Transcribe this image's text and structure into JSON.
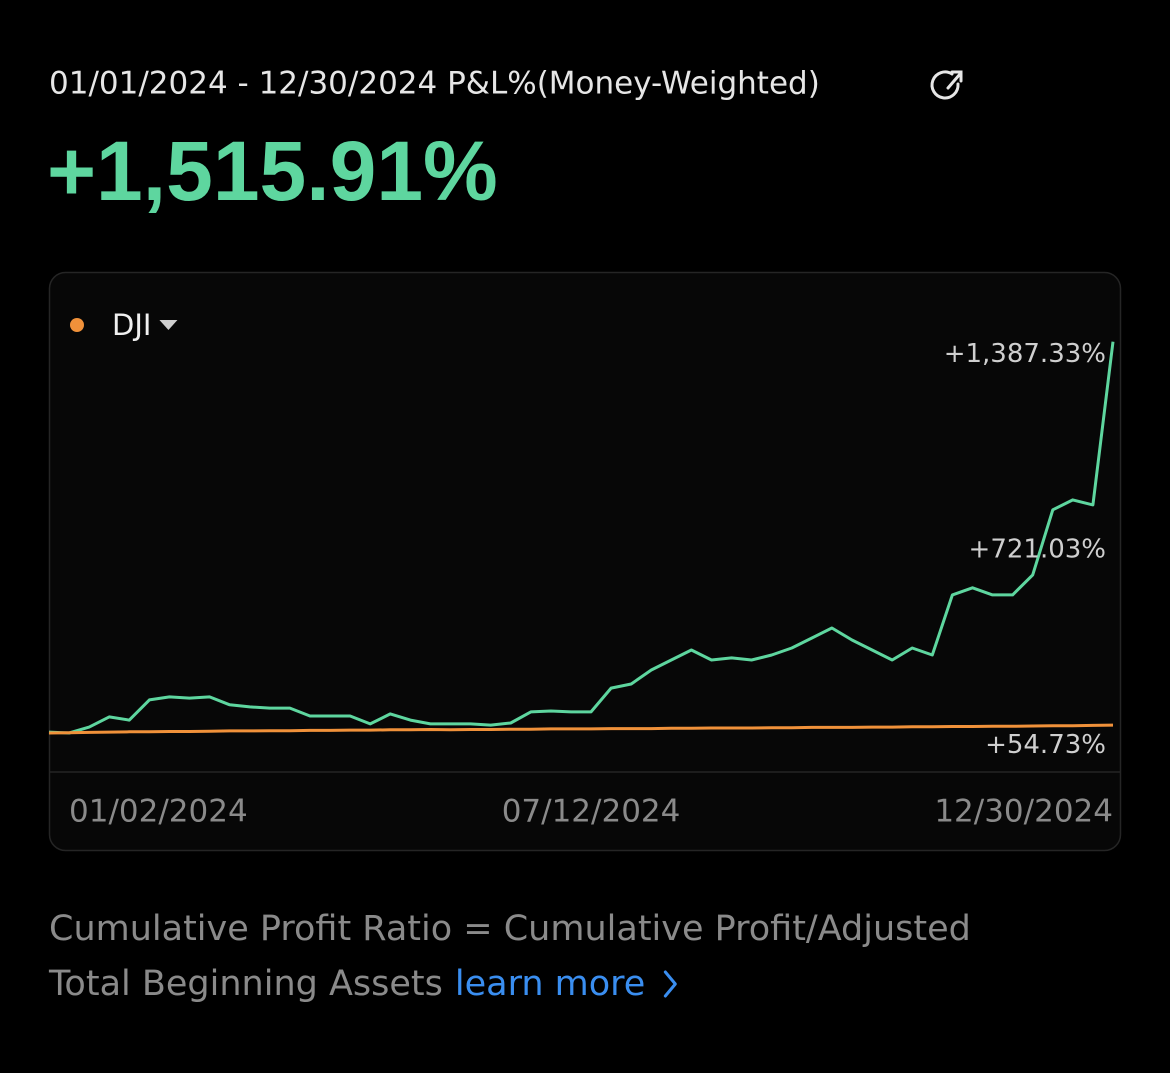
{
  "header": {
    "title": "01/01/2024 - 12/30/2024 P&L%(Money-Weighted)",
    "value": "+1,515.91%"
  },
  "chart_data": {
    "type": "line",
    "xlim": [
      0,
      53
    ],
    "xticks": [
      {
        "value": 0,
        "label": "01/02/2024"
      },
      {
        "value": 27,
        "label": "07/12/2024"
      },
      {
        "value": 53,
        "label": "12/30/2024"
      }
    ],
    "ylim": [
      -80,
      1400
    ],
    "yticks": [
      {
        "value": 1387.33,
        "label": "+1,387.33%"
      },
      {
        "value": 721.03,
        "label": "+721.03%"
      },
      {
        "value": 54.73,
        "label": "+54.73%"
      }
    ],
    "grid": false,
    "series": [
      {
        "color": "#5ed69f",
        "values": [
          56,
          53,
          73,
          108,
          97,
          166,
          176,
          172,
          176,
          149,
          142,
          138,
          138,
          111,
          111,
          111,
          84,
          118,
          97,
          84,
          84,
          84,
          80,
          87,
          125,
          128,
          125,
          125,
          206,
          220,
          268,
          302,
          336,
          302,
          309,
          302,
          319,
          343,
          377,
          411,
          370,
          336,
          302,
          343,
          319,
          524,
          548,
          524,
          524,
          592,
          814,
          848,
          831,
          1387.33
        ]
      },
      {
        "name": "DJI",
        "color": "#f0913a",
        "values": [
          53,
          54,
          55,
          56,
          57,
          57,
          58,
          58,
          59,
          60,
          60,
          61,
          61,
          62,
          62,
          63,
          63,
          64,
          64,
          65,
          64,
          65,
          65,
          66,
          66,
          67,
          67,
          67,
          68,
          68,
          68,
          69,
          69,
          70,
          70,
          70,
          71,
          71,
          72,
          72,
          72,
          73,
          73,
          74,
          74,
          75,
          75,
          76,
          76,
          77,
          78,
          78,
          79,
          80
        ]
      }
    ]
  },
  "footer": {
    "lines": [
      "Cumulative Profit Ratio = Cumulative Profit/Adjusted",
      "Total Beginning Assets"
    ],
    "link": "learn more"
  }
}
